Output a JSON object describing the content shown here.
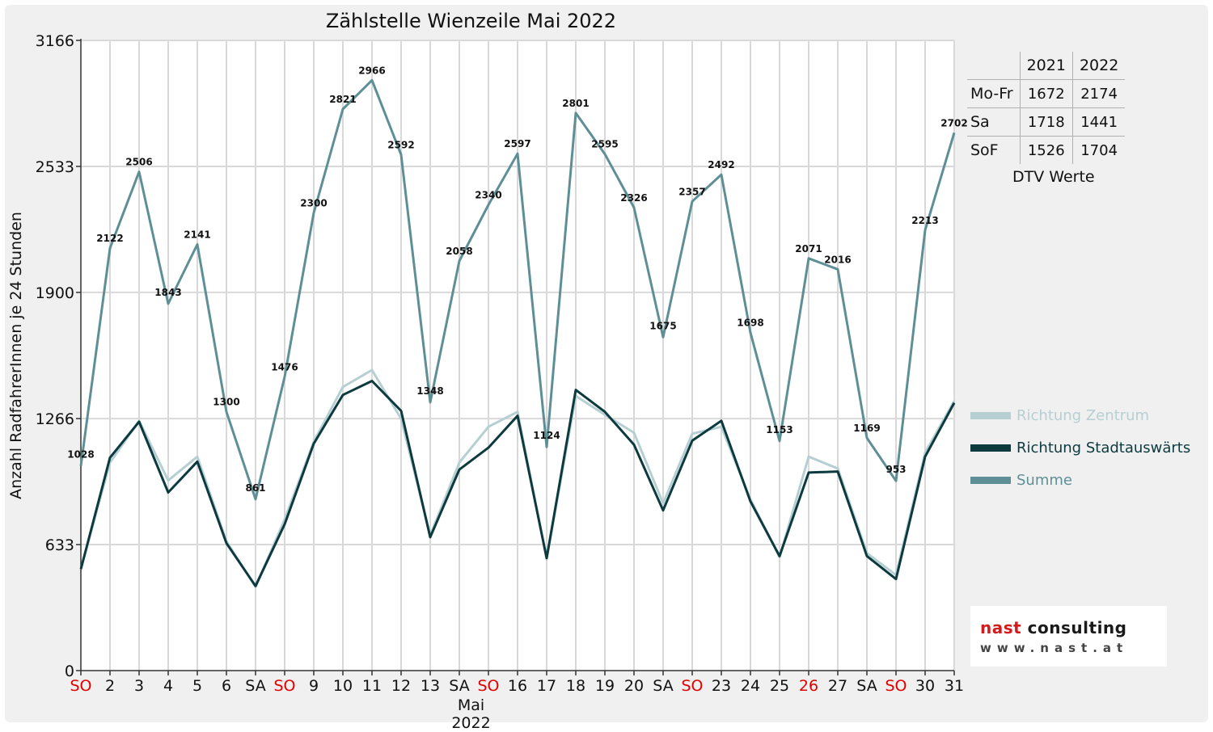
{
  "chart_data": {
    "type": "line",
    "title": "Zählstelle Wienzeile Mai 2022",
    "xlabel": "Mai 2022",
    "ylabel": "Anzahl RadfahrerInnen je 24 Stunden",
    "ylim": [
      0,
      3166
    ],
    "yticks": [
      "0",
      "633",
      "1266",
      "1900",
      "2533",
      "3166"
    ],
    "grid": true,
    "categories": [
      "SO",
      "2",
      "3",
      "4",
      "5",
      "6",
      "SA",
      "SO",
      "9",
      "10",
      "11",
      "12",
      "13",
      "SA",
      "SO",
      "16",
      "17",
      "18",
      "19",
      "20",
      "SA",
      "SO",
      "23",
      "24",
      "25",
      "26",
      "27",
      "SA",
      "SO",
      "30",
      "31"
    ],
    "category_colors": [
      "#e00000",
      "#111111",
      "#111111",
      "#111111",
      "#111111",
      "#111111",
      "#111111",
      "#e00000",
      "#111111",
      "#111111",
      "#111111",
      "#111111",
      "#111111",
      "#111111",
      "#e00000",
      "#111111",
      "#111111",
      "#111111",
      "#111111",
      "#111111",
      "#111111",
      "#e00000",
      "#111111",
      "#111111",
      "#111111",
      "#e00000",
      "#111111",
      "#111111",
      "#e00000",
      "#111111",
      "#111111"
    ],
    "series": [
      {
        "name": "Richtung Zentrum",
        "color": "#b6cfd3",
        "values": [
          510,
          1045,
          1255,
          955,
          1075,
          650,
          420,
          760,
          1150,
          1425,
          1510,
          1265,
          680,
          1045,
          1225,
          1300,
          560,
          1380,
          1285,
          1195,
          840,
          1190,
          1225,
          860,
          570,
          1075,
          1015,
          590,
          480,
          1095,
          1355
        ]
      },
      {
        "name": "Richtung Stadtauswärts",
        "color": "#0c3a3e",
        "values": [
          510,
          1070,
          1250,
          895,
          1050,
          640,
          425,
          735,
          1140,
          1385,
          1455,
          1305,
          670,
          1010,
          1120,
          1280,
          565,
          1410,
          1300,
          1135,
          805,
          1155,
          1255,
          850,
          575,
          995,
          1000,
          575,
          460,
          1075,
          1345
        ]
      },
      {
        "name": "Summe",
        "color": "#5f8f96",
        "values": [
          1028,
          2122,
          2506,
          1843,
          2141,
          1300,
          861,
          1476,
          2300,
          2821,
          2966,
          2592,
          1348,
          2058,
          2340,
          2597,
          1124,
          2801,
          2595,
          2326,
          1675,
          2357,
          2492,
          1698,
          1153,
          2071,
          2016,
          1169,
          953,
          2213,
          2702
        ]
      }
    ],
    "data_labels": [
      "1028",
      "2122",
      "2506",
      "1843",
      "2141",
      "1300",
      "861",
      "1476",
      "2300",
      "2821",
      "2966",
      "2592",
      "1348",
      "2058",
      "2340",
      "2597",
      "1124",
      "2801",
      "2595",
      "2326",
      "1675",
      "2357",
      "2492",
      "1698",
      "1153",
      "2071",
      "2016",
      "1169",
      "953",
      "2213",
      "2702"
    ]
  },
  "dtv": {
    "header": [
      "",
      "2021",
      "2022"
    ],
    "rows": [
      {
        "label": "Mo-Fr",
        "v2021": "1672",
        "v2022": "2174"
      },
      {
        "label": "Sa",
        "v2021": "1718",
        "v2022": "1441"
      },
      {
        "label": "SoF",
        "v2021": "1526",
        "v2022": "1704"
      }
    ],
    "caption": "DTV Werte"
  },
  "logo": {
    "word1": "nast",
    "word2": "consulting",
    "url": "www.nast.at",
    "color1": "#d41a1a",
    "color2": "#1a1a1a"
  }
}
